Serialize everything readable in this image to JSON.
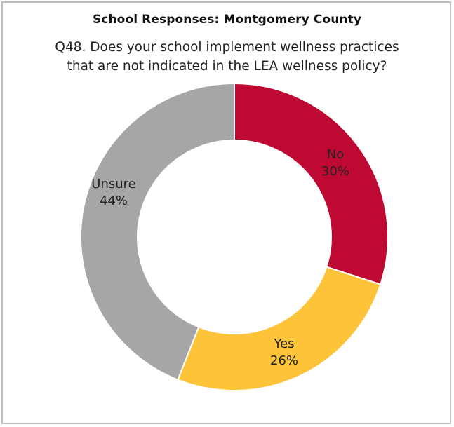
{
  "chart_data": {
    "type": "pie",
    "title": "School Responses: Montgomery County",
    "subtitle_lines": [
      "Q48. Does your school implement wellness practices",
      "that are not indicated in the LEA wellness policy?"
    ],
    "donut": true,
    "slices": [
      {
        "label": "No",
        "value": 30,
        "value_label": "30%",
        "color": "#be0a32"
      },
      {
        "label": "Yes",
        "value": 26,
        "value_label": "26%",
        "color": "#fdc43a"
      },
      {
        "label": "Unsure",
        "value": 44,
        "value_label": "44%",
        "color": "#a6a6a6"
      }
    ]
  }
}
